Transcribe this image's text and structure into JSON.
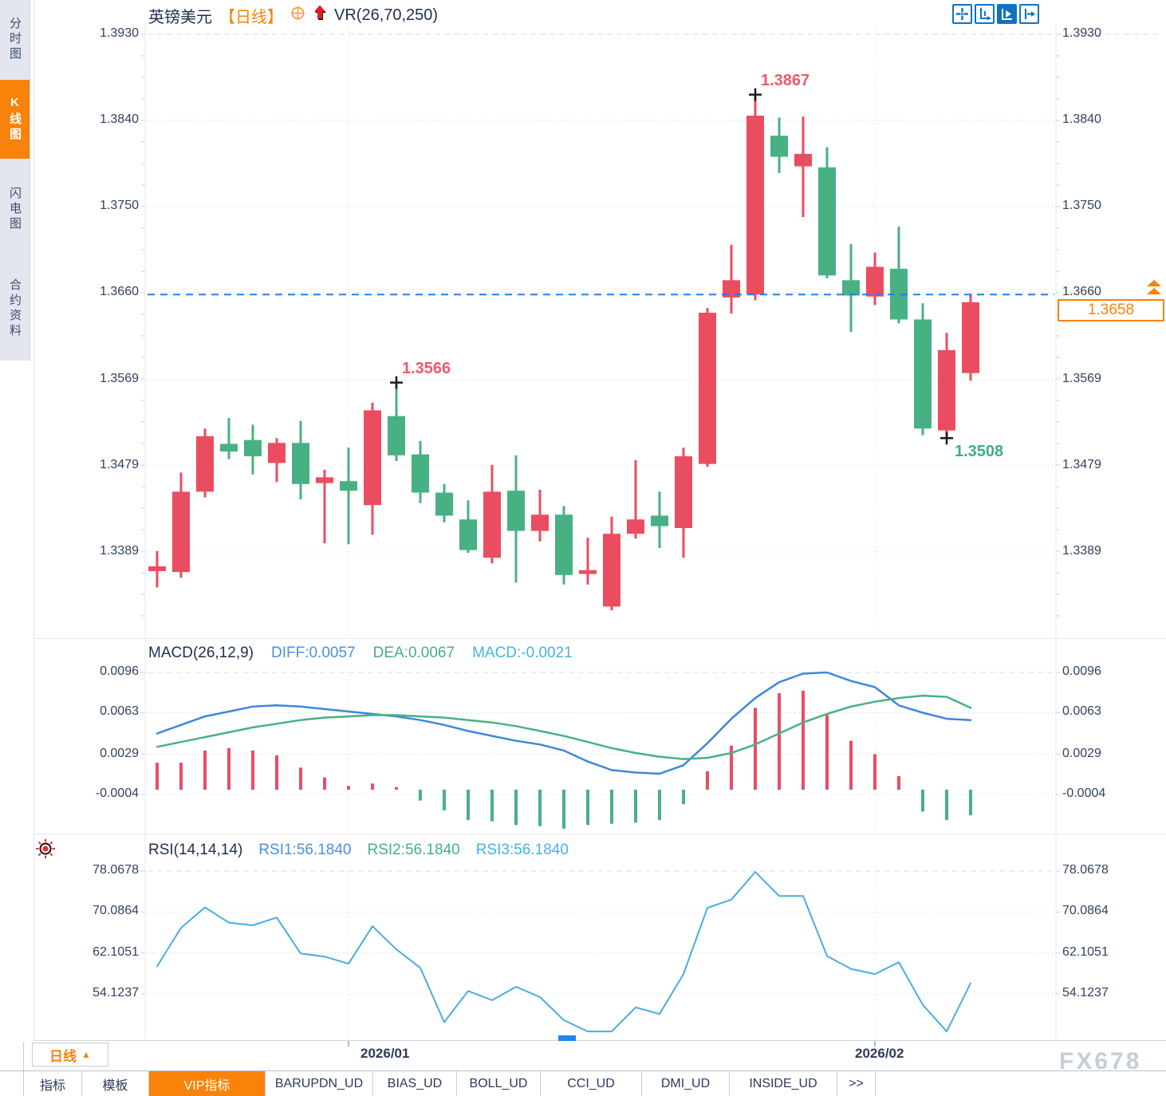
{
  "header": {
    "symbol": "英镑美元",
    "period": "【日线】",
    "indicator": "VR(26,70,250)"
  },
  "sidebar": {
    "tabs": [
      {
        "label": "分时图",
        "name": "time-chart",
        "active": false
      },
      {
        "label": "K线图",
        "name": "kline-chart",
        "active": true
      },
      {
        "label": "闪电图",
        "name": "flash-chart",
        "active": false
      },
      {
        "label": "合约资料",
        "name": "contract-info",
        "active": false
      }
    ]
  },
  "toolbar": {
    "icons": [
      "move-crosshair-icon",
      "scale-axes-icon",
      "auto-scale-icon",
      "shift-chart-icon"
    ]
  },
  "macd_header": {
    "name": "MACD(26,12,9)",
    "diff": "DIFF:0.0057",
    "dea": "DEA:0.0067",
    "macd": "MACD:-0.0021"
  },
  "rsi_header": {
    "name": "RSI(14,14,14)",
    "rsi1": "RSI1:56.1840",
    "rsi2": "RSI2:56.1840",
    "rsi3": "RSI3:56.1840"
  },
  "price_tags": {
    "current": "1.3658"
  },
  "xaxis": {
    "period": "日线",
    "arrow": "▲",
    "labels": [
      "2026/01",
      "2026/02"
    ]
  },
  "tabs": {
    "items": [
      {
        "label": "指标",
        "name": "indicators",
        "active": false
      },
      {
        "label": "模板",
        "name": "templates",
        "active": false
      },
      {
        "label": "VIP指标",
        "name": "vip-indicators",
        "active": true
      },
      {
        "label": "BARUPDN_UD",
        "name": "barupdn-ud",
        "active": false
      },
      {
        "label": "BIAS_UD",
        "name": "bias-ud",
        "active": false
      },
      {
        "label": "BOLL_UD",
        "name": "boll-ud",
        "active": false
      },
      {
        "label": "CCI_UD",
        "name": "cci-ud",
        "active": false
      },
      {
        "label": "DMI_UD",
        "name": "dmi-ud",
        "active": false
      },
      {
        "label": "INSIDE_UD",
        "name": "inside-ud",
        "active": false
      },
      {
        "label": ">>",
        "name": "more-tabs",
        "active": false
      }
    ]
  },
  "watermark": "FX678",
  "colors": {
    "up": "#ea4d60",
    "down": "#47b184",
    "diff_line": "#3d87dd",
    "dea_line": "#49b183",
    "rsi_line": "#49aede",
    "accent_orange": "#f8820a",
    "axis_text": "#31415f",
    "current_price_line": "#1f80f0",
    "marker_red": "#ee5a68",
    "marker_green": "#3fae8a"
  },
  "chart_data": [
    {
      "type": "candlestick",
      "title": "英镑美元 日线 (GBP/USD Daily)",
      "y_ticks": [
        1.393,
        1.384,
        1.375,
        1.366,
        1.3569,
        1.3479,
        1.3389
      ],
      "x_tick_labels": [
        "2026/01",
        "2026/02"
      ],
      "current_price": 1.3658,
      "markers": [
        {
          "type": "high",
          "index": 25,
          "price": 1.3867,
          "label": "1.3867"
        },
        {
          "type": "high",
          "index": 10,
          "price": 1.3566,
          "label": "1.3566"
        },
        {
          "type": "low",
          "index": 33,
          "price": 1.3508,
          "label": "1.3508"
        }
      ],
      "ohlc": [
        [
          1.3369,
          1.339,
          1.3352,
          1.3374
        ],
        [
          1.3368,
          1.3472,
          1.3362,
          1.3452
        ],
        [
          1.3452,
          1.3518,
          1.3446,
          1.351
        ],
        [
          1.3502,
          1.3529,
          1.3486,
          1.3494
        ],
        [
          1.3506,
          1.3522,
          1.347,
          1.3489
        ],
        [
          1.3482,
          1.3508,
          1.3462,
          1.3503
        ],
        [
          1.3503,
          1.3526,
          1.3444,
          1.346
        ],
        [
          1.3461,
          1.3475,
          1.3398,
          1.3467
        ],
        [
          1.3463,
          1.3498,
          1.3397,
          1.3453
        ],
        [
          1.3438,
          1.3545,
          1.3407,
          1.3537
        ],
        [
          1.3531,
          1.3566,
          1.3484,
          1.349
        ],
        [
          1.3491,
          1.3505,
          1.344,
          1.3451
        ],
        [
          1.3451,
          1.346,
          1.342,
          1.3427
        ],
        [
          1.3423,
          1.3443,
          1.3388,
          1.3391
        ],
        [
          1.3383,
          1.348,
          1.3377,
          1.3452
        ],
        [
          1.3453,
          1.349,
          1.3357,
          1.3411
        ],
        [
          1.3411,
          1.3454,
          1.34,
          1.3428
        ],
        [
          1.3428,
          1.3437,
          1.3355,
          1.3365
        ],
        [
          1.3366,
          1.3404,
          1.3355,
          1.337
        ],
        [
          1.3332,
          1.3426,
          1.3328,
          1.3408
        ],
        [
          1.3408,
          1.3485,
          1.3403,
          1.3423
        ],
        [
          1.3427,
          1.3452,
          1.3393,
          1.3416
        ],
        [
          1.3414,
          1.3498,
          1.3383,
          1.3489
        ],
        [
          1.3481,
          1.3644,
          1.3478,
          1.3639
        ],
        [
          1.3655,
          1.371,
          1.3638,
          1.3673
        ],
        [
          1.3658,
          1.3867,
          1.3652,
          1.3845
        ],
        [
          1.3824,
          1.3843,
          1.3785,
          1.3802
        ],
        [
          1.3792,
          1.3844,
          1.3739,
          1.3805
        ],
        [
          1.3791,
          1.3812,
          1.3675,
          1.3678
        ],
        [
          1.3673,
          1.3711,
          1.3619,
          1.3657
        ],
        [
          1.3656,
          1.3702,
          1.3647,
          1.3687
        ],
        [
          1.3685,
          1.3729,
          1.3628,
          1.3632
        ],
        [
          1.3632,
          1.3649,
          1.3511,
          1.3518
        ],
        [
          1.3516,
          1.3618,
          1.3508,
          1.36
        ],
        [
          1.3576,
          1.3659,
          1.3568,
          1.365
        ]
      ]
    },
    {
      "type": "bar",
      "name": "MACD(26,12,9)",
      "diff": 0.0057,
      "dea": 0.0067,
      "macd": -0.0021,
      "y_ticks": [
        0.0096,
        0.0063,
        0.0029,
        -0.0004
      ],
      "diff_series": [
        0.0046,
        0.0053,
        0.006,
        0.0064,
        0.0068,
        0.0069,
        0.0068,
        0.0066,
        0.0064,
        0.0062,
        0.006,
        0.0057,
        0.0053,
        0.0048,
        0.0044,
        0.004,
        0.0037,
        0.0032,
        0.0023,
        0.0016,
        0.0014,
        0.0013,
        0.002,
        0.0038,
        0.0058,
        0.0075,
        0.0088,
        0.0095,
        0.0096,
        0.0089,
        0.0084,
        0.0069,
        0.0063,
        0.0058,
        0.0057
      ],
      "dea_series": [
        0.0035,
        0.0039,
        0.0043,
        0.0047,
        0.0051,
        0.0054,
        0.0057,
        0.0059,
        0.006,
        0.0061,
        0.0061,
        0.006,
        0.0059,
        0.0057,
        0.0055,
        0.0052,
        0.0048,
        0.0044,
        0.0039,
        0.0034,
        0.003,
        0.0027,
        0.0025,
        0.0026,
        0.003,
        0.0037,
        0.0046,
        0.0055,
        0.0062,
        0.0068,
        0.0072,
        0.0075,
        0.0077,
        0.0076,
        0.0067
      ],
      "hist_series": [
        0.0022,
        0.0022,
        0.0032,
        0.0034,
        0.0032,
        0.0028,
        0.0018,
        0.001,
        0.0003,
        0.0005,
        0.0002,
        -0.0009,
        -0.0017,
        -0.0025,
        -0.0026,
        -0.0029,
        -0.003,
        -0.0032,
        -0.0029,
        -0.0028,
        -0.0027,
        -0.0025,
        -0.0012,
        0.0015,
        0.0036,
        0.0067,
        0.0079,
        0.0081,
        0.0061,
        0.004,
        0.0029,
        0.0011,
        -0.0018,
        -0.0025,
        -0.0021
      ]
    },
    {
      "type": "line",
      "name": "RSI(14,14,14)",
      "rsi1": 56.184,
      "rsi2": 56.184,
      "rsi3": 56.184,
      "y_ticks": [
        78.0678,
        70.0864,
        62.1051,
        54.1237
      ],
      "values": [
        59.5,
        67.0,
        71.0,
        68.0,
        67.5,
        69.0,
        62.0,
        61.4,
        60.0,
        67.3,
        62.8,
        59.2,
        48.6,
        54.7,
        52.9,
        55.5,
        53.5,
        49.0,
        46.8,
        46.8,
        51.5,
        50.2,
        58.0,
        70.9,
        72.5,
        77.9,
        73.2,
        73.2,
        61.5,
        59.0,
        58.0,
        60.3,
        52.0,
        46.8,
        56.2
      ]
    }
  ]
}
